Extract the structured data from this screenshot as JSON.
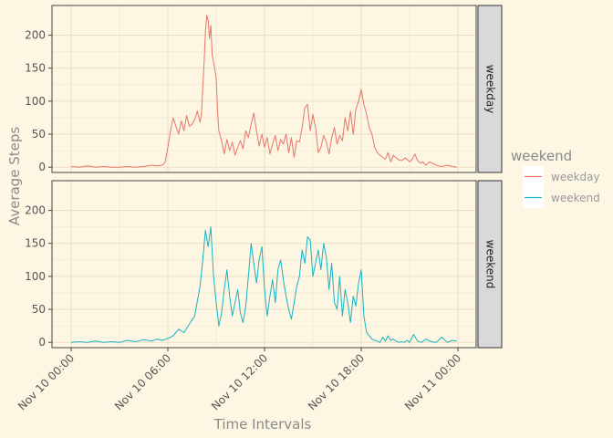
{
  "chart_data": {
    "type": "line",
    "facet": "rows",
    "xlabel": "Time Intervals",
    "ylabel": "Average Steps",
    "x_range": [
      "Nov 10 00:00",
      "Nov 11 00:00"
    ],
    "x_ticks": [
      "Nov 10 00:00",
      "Nov 10 06:00",
      "Nov 10 12:00",
      "Nov 10 18:00",
      "Nov 11 00:00"
    ],
    "y_ticks": [
      0,
      50,
      100,
      150,
      200
    ],
    "ylim": [
      -8,
      245
    ],
    "grid": true,
    "legend": {
      "title": "weekend",
      "position": "right",
      "entries": [
        {
          "label": "weekday",
          "color": "#e8756a"
        },
        {
          "label": "weekend",
          "color": "#19b2c2"
        }
      ]
    },
    "panels": [
      {
        "strip": "weekday",
        "color": "#e8756a",
        "x": [
          "00:00",
          "00:30",
          "01:00",
          "01:30",
          "02:00",
          "02:30",
          "03:00",
          "03:30",
          "04:00",
          "04:30",
          "05:00",
          "05:20",
          "05:40",
          "05:50",
          "06:00",
          "06:10",
          "06:20",
          "06:30",
          "06:40",
          "06:50",
          "07:00",
          "07:10",
          "07:20",
          "07:30",
          "07:40",
          "07:50",
          "08:00",
          "08:05",
          "08:10",
          "08:15",
          "08:20",
          "08:25",
          "08:30",
          "08:35",
          "08:40",
          "08:45",
          "08:50",
          "09:00",
          "09:05",
          "09:10",
          "09:20",
          "09:30",
          "09:40",
          "09:50",
          "10:00",
          "10:10",
          "10:20",
          "10:30",
          "10:40",
          "10:50",
          "11:00",
          "11:10",
          "11:20",
          "11:30",
          "11:40",
          "11:50",
          "12:00",
          "12:10",
          "12:20",
          "12:30",
          "12:40",
          "12:50",
          "13:00",
          "13:10",
          "13:20",
          "13:30",
          "13:40",
          "13:50",
          "14:00",
          "14:10",
          "14:20",
          "14:30",
          "14:40",
          "14:50",
          "15:00",
          "15:10",
          "15:20",
          "15:30",
          "15:40",
          "15:50",
          "16:00",
          "16:10",
          "16:20",
          "16:30",
          "16:40",
          "16:50",
          "17:00",
          "17:10",
          "17:20",
          "17:30",
          "17:40",
          "17:50",
          "18:00",
          "18:10",
          "18:20",
          "18:30",
          "18:40",
          "18:50",
          "19:00",
          "19:10",
          "19:20",
          "19:30",
          "19:40",
          "19:50",
          "20:00",
          "20:15",
          "20:30",
          "20:45",
          "21:00",
          "21:10",
          "21:20",
          "21:30",
          "21:40",
          "21:50",
          "22:00",
          "22:15",
          "22:30",
          "22:45",
          "23:00",
          "23:20",
          "23:40",
          "23:55"
        ],
        "y": [
          1,
          0,
          2,
          0,
          1,
          0,
          0,
          1,
          0,
          1,
          3,
          2,
          3,
          8,
          30,
          55,
          75,
          62,
          50,
          70,
          55,
          78,
          62,
          65,
          72,
          85,
          68,
          80,
          120,
          160,
          205,
          230,
          222,
          195,
          215,
          170,
          160,
          135,
          85,
          55,
          40,
          20,
          42,
          25,
          38,
          18,
          30,
          40,
          28,
          55,
          45,
          65,
          82,
          55,
          32,
          50,
          30,
          45,
          20,
          35,
          48,
          25,
          42,
          35,
          50,
          22,
          45,
          15,
          40,
          38,
          60,
          90,
          95,
          55,
          80,
          60,
          22,
          30,
          48,
          38,
          20,
          45,
          60,
          35,
          48,
          40,
          75,
          55,
          85,
          50,
          88,
          100,
          118,
          95,
          80,
          60,
          50,
          30,
          22,
          18,
          15,
          12,
          22,
          8,
          18,
          12,
          10,
          14,
          8,
          12,
          20,
          10,
          6,
          8,
          3,
          8,
          5,
          2,
          1,
          3,
          1,
          0
        ],
        "series_name": "weekday"
      },
      {
        "strip": "weekend",
        "color": "#19b2c2",
        "x": [
          "00:00",
          "00:30",
          "01:00",
          "01:30",
          "02:00",
          "02:30",
          "03:00",
          "03:30",
          "04:00",
          "04:30",
          "05:00",
          "05:20",
          "05:40",
          "06:00",
          "06:20",
          "06:40",
          "07:00",
          "07:20",
          "07:40",
          "08:00",
          "08:10",
          "08:20",
          "08:30",
          "08:40",
          "08:50",
          "09:00",
          "09:10",
          "09:20",
          "09:30",
          "09:40",
          "09:50",
          "10:00",
          "10:10",
          "10:20",
          "10:30",
          "10:40",
          "10:50",
          "11:00",
          "11:10",
          "11:20",
          "11:30",
          "11:40",
          "11:50",
          "12:00",
          "12:10",
          "12:20",
          "12:30",
          "12:40",
          "12:50",
          "13:00",
          "13:10",
          "13:20",
          "13:30",
          "13:40",
          "13:50",
          "14:00",
          "14:10",
          "14:20",
          "14:30",
          "14:40",
          "14:50",
          "15:00",
          "15:10",
          "15:20",
          "15:30",
          "15:40",
          "15:50",
          "16:00",
          "16:10",
          "16:20",
          "16:30",
          "16:40",
          "16:50",
          "17:00",
          "17:10",
          "17:20",
          "17:30",
          "17:40",
          "17:50",
          "18:00",
          "18:10",
          "18:20",
          "18:30",
          "18:40",
          "18:50",
          "19:00",
          "19:10",
          "19:20",
          "19:30",
          "19:40",
          "19:50",
          "20:00",
          "20:10",
          "20:20",
          "20:30",
          "20:40",
          "20:50",
          "21:00",
          "21:15",
          "21:30",
          "21:45",
          "22:00",
          "22:20",
          "22:40",
          "23:00",
          "23:20",
          "23:40",
          "23:55"
        ],
        "y": [
          0,
          1,
          0,
          2,
          0,
          1,
          0,
          3,
          1,
          4,
          2,
          5,
          3,
          6,
          10,
          20,
          15,
          28,
          40,
          85,
          125,
          170,
          145,
          175,
          100,
          60,
          25,
          45,
          80,
          110,
          70,
          40,
          60,
          80,
          45,
          30,
          55,
          100,
          150,
          120,
          90,
          125,
          145,
          80,
          40,
          70,
          95,
          60,
          110,
          125,
          95,
          70,
          50,
          35,
          60,
          85,
          100,
          140,
          120,
          160,
          155,
          100,
          120,
          140,
          110,
          150,
          130,
          80,
          120,
          60,
          50,
          100,
          40,
          80,
          60,
          30,
          70,
          55,
          90,
          110,
          40,
          15,
          10,
          5,
          3,
          2,
          0,
          8,
          2,
          10,
          3,
          5,
          2,
          0,
          1,
          0,
          3,
          0,
          12,
          2,
          0,
          5,
          1,
          0,
          8,
          0,
          3,
          2
        ],
        "series_name": "weekend"
      }
    ]
  }
}
